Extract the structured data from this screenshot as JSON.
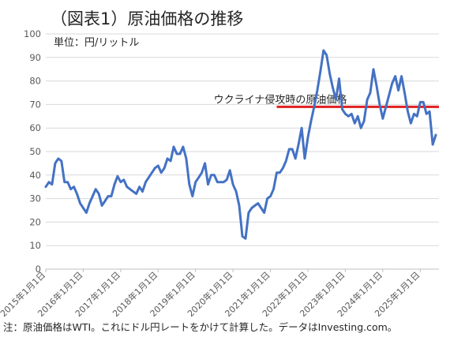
{
  "chart_data": {
    "type": "line",
    "title": "（図表1）原油価格の推移",
    "unit_label": "単位：円/リットル",
    "ylim": [
      0,
      100
    ],
    "yticks": [
      0,
      10,
      20,
      30,
      40,
      50,
      60,
      70,
      80,
      90,
      100
    ],
    "xlim": [
      "2015-01",
      "2025-07"
    ],
    "xticks": [
      "2015年1月1日",
      "2016年1月1日",
      "2017年1月1日",
      "2018年1月1日",
      "2019年1月1日",
      "2020年1月1日",
      "2021年1月1日",
      "2022年1月1日",
      "2023年1月1日",
      "2024年1月1日",
      "2025年1月1日"
    ],
    "grid": true,
    "line_color": "#4472C4",
    "series": [
      {
        "x": [
          "2015-01",
          "2015-02",
          "2015-03",
          "2015-04",
          "2015-05",
          "2015-06",
          "2015-07",
          "2015-08",
          "2015-09",
          "2015-10",
          "2015-11",
          "2015-12",
          "2016-01",
          "2016-02",
          "2016-03",
          "2016-04",
          "2016-05",
          "2016-06",
          "2016-07",
          "2016-08",
          "2016-09",
          "2016-10",
          "2016-11",
          "2016-12",
          "2017-01",
          "2017-02",
          "2017-03",
          "2017-04",
          "2017-05",
          "2017-06",
          "2017-07",
          "2017-08",
          "2017-09",
          "2017-10",
          "2017-11",
          "2017-12",
          "2018-01",
          "2018-02",
          "2018-03",
          "2018-04",
          "2018-05",
          "2018-06",
          "2018-07",
          "2018-08",
          "2018-09",
          "2018-10",
          "2018-11",
          "2018-12",
          "2019-01",
          "2019-02",
          "2019-03",
          "2019-04",
          "2019-05",
          "2019-06",
          "2019-07",
          "2019-08",
          "2019-09",
          "2019-10",
          "2019-11",
          "2019-12",
          "2020-01",
          "2020-02",
          "2020-03",
          "2020-04",
          "2020-05",
          "2020-06",
          "2020-07",
          "2020-08",
          "2020-09",
          "2020-10",
          "2020-11",
          "2020-12",
          "2021-01",
          "2021-02",
          "2021-03",
          "2021-04",
          "2021-05",
          "2021-06",
          "2021-07",
          "2021-08",
          "2021-09",
          "2021-10",
          "2021-11",
          "2021-12",
          "2022-01",
          "2022-02",
          "2022-03",
          "2022-04",
          "2022-05",
          "2022-06",
          "2022-07",
          "2022-08",
          "2022-09",
          "2022-10",
          "2022-11",
          "2022-12",
          "2023-01",
          "2023-02",
          "2023-03",
          "2023-04",
          "2023-05",
          "2023-06",
          "2023-07",
          "2023-08",
          "2023-09",
          "2023-10",
          "2023-11",
          "2023-12",
          "2024-01",
          "2024-02",
          "2024-03",
          "2024-04",
          "2024-05",
          "2024-06",
          "2024-07",
          "2024-08",
          "2024-09",
          "2024-10",
          "2024-11",
          "2024-12",
          "2025-01",
          "2025-02",
          "2025-03",
          "2025-04",
          "2025-05",
          "2025-06"
        ],
        "values": [
          35,
          37,
          36,
          45,
          47,
          46,
          37,
          37,
          34,
          35,
          32,
          28,
          26,
          24,
          28,
          31,
          34,
          32,
          27,
          29,
          31,
          31,
          36,
          39.5,
          37,
          38,
          35,
          34,
          33,
          32,
          35,
          33,
          37,
          39,
          41,
          43,
          44,
          41,
          43,
          47,
          46,
          52,
          49,
          49,
          52,
          47,
          36,
          31,
          37,
          39,
          41,
          45,
          36,
          40,
          40,
          37,
          37,
          37,
          38,
          42,
          36,
          33,
          27,
          14,
          13,
          24,
          26,
          27,
          28,
          26,
          24,
          30,
          31,
          34,
          41,
          41,
          43,
          46,
          51,
          51,
          47,
          53,
          60,
          47,
          56,
          63,
          69,
          76,
          84,
          93,
          91,
          83,
          77,
          72,
          81,
          68,
          66,
          65,
          66,
          62,
          65,
          60,
          63,
          72,
          75,
          85,
          78,
          70,
          64,
          69,
          74,
          79,
          82,
          76,
          82,
          75,
          67,
          62,
          66,
          65,
          71,
          71,
          66,
          67,
          53,
          57
        ]
      }
    ],
    "annotation": {
      "label": "ウクライナ侵攻時の原油価格",
      "value": 69,
      "from": "2021-03",
      "to": "2025-07",
      "color": "#E02020"
    },
    "footnote": "注：原油価格はWTI。これにドル円レートをかけて計算した。データはInvesting.com。"
  }
}
